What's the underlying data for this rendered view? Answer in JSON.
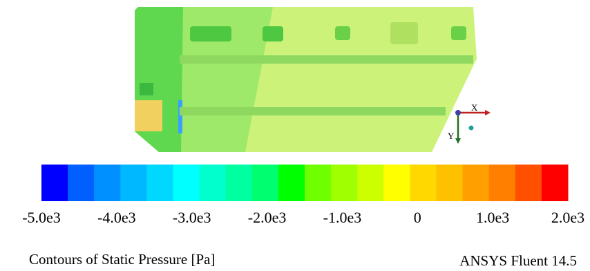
{
  "colorbar": {
    "lim": [
      -5000,
      2000
    ],
    "ticks": [
      {
        "value": -5000,
        "label": "-5.0e3"
      },
      {
        "value": -4000,
        "label": "-4.0e3"
      },
      {
        "value": -3000,
        "label": "-3.0e3"
      },
      {
        "value": -2000,
        "label": "-2.0e3"
      },
      {
        "value": -1000,
        "label": "-1.0e3"
      },
      0,
      {
        "value": 1000,
        "label": "1.0e3"
      },
      {
        "value": 2000,
        "label": "2.0e3"
      }
    ],
    "colors": [
      "#0000ff",
      "#0060ff",
      "#0090ff",
      "#00b8ff",
      "#00d8ff",
      "#00ffff",
      "#00ffcc",
      "#00ffa0",
      "#00ff70",
      "#00ff00",
      "#70ff00",
      "#a0ff00",
      "#ccff00",
      "#ffff00",
      "#ffd800",
      "#ffc000",
      "#ffa000",
      "#ff8000",
      "#ff5000",
      "#ff0000"
    ]
  },
  "axes": {
    "x": "X",
    "y": "Y"
  },
  "caption": "Contours of Static Pressure [Pa]",
  "software": "ANSYS Fluent 14.5"
}
